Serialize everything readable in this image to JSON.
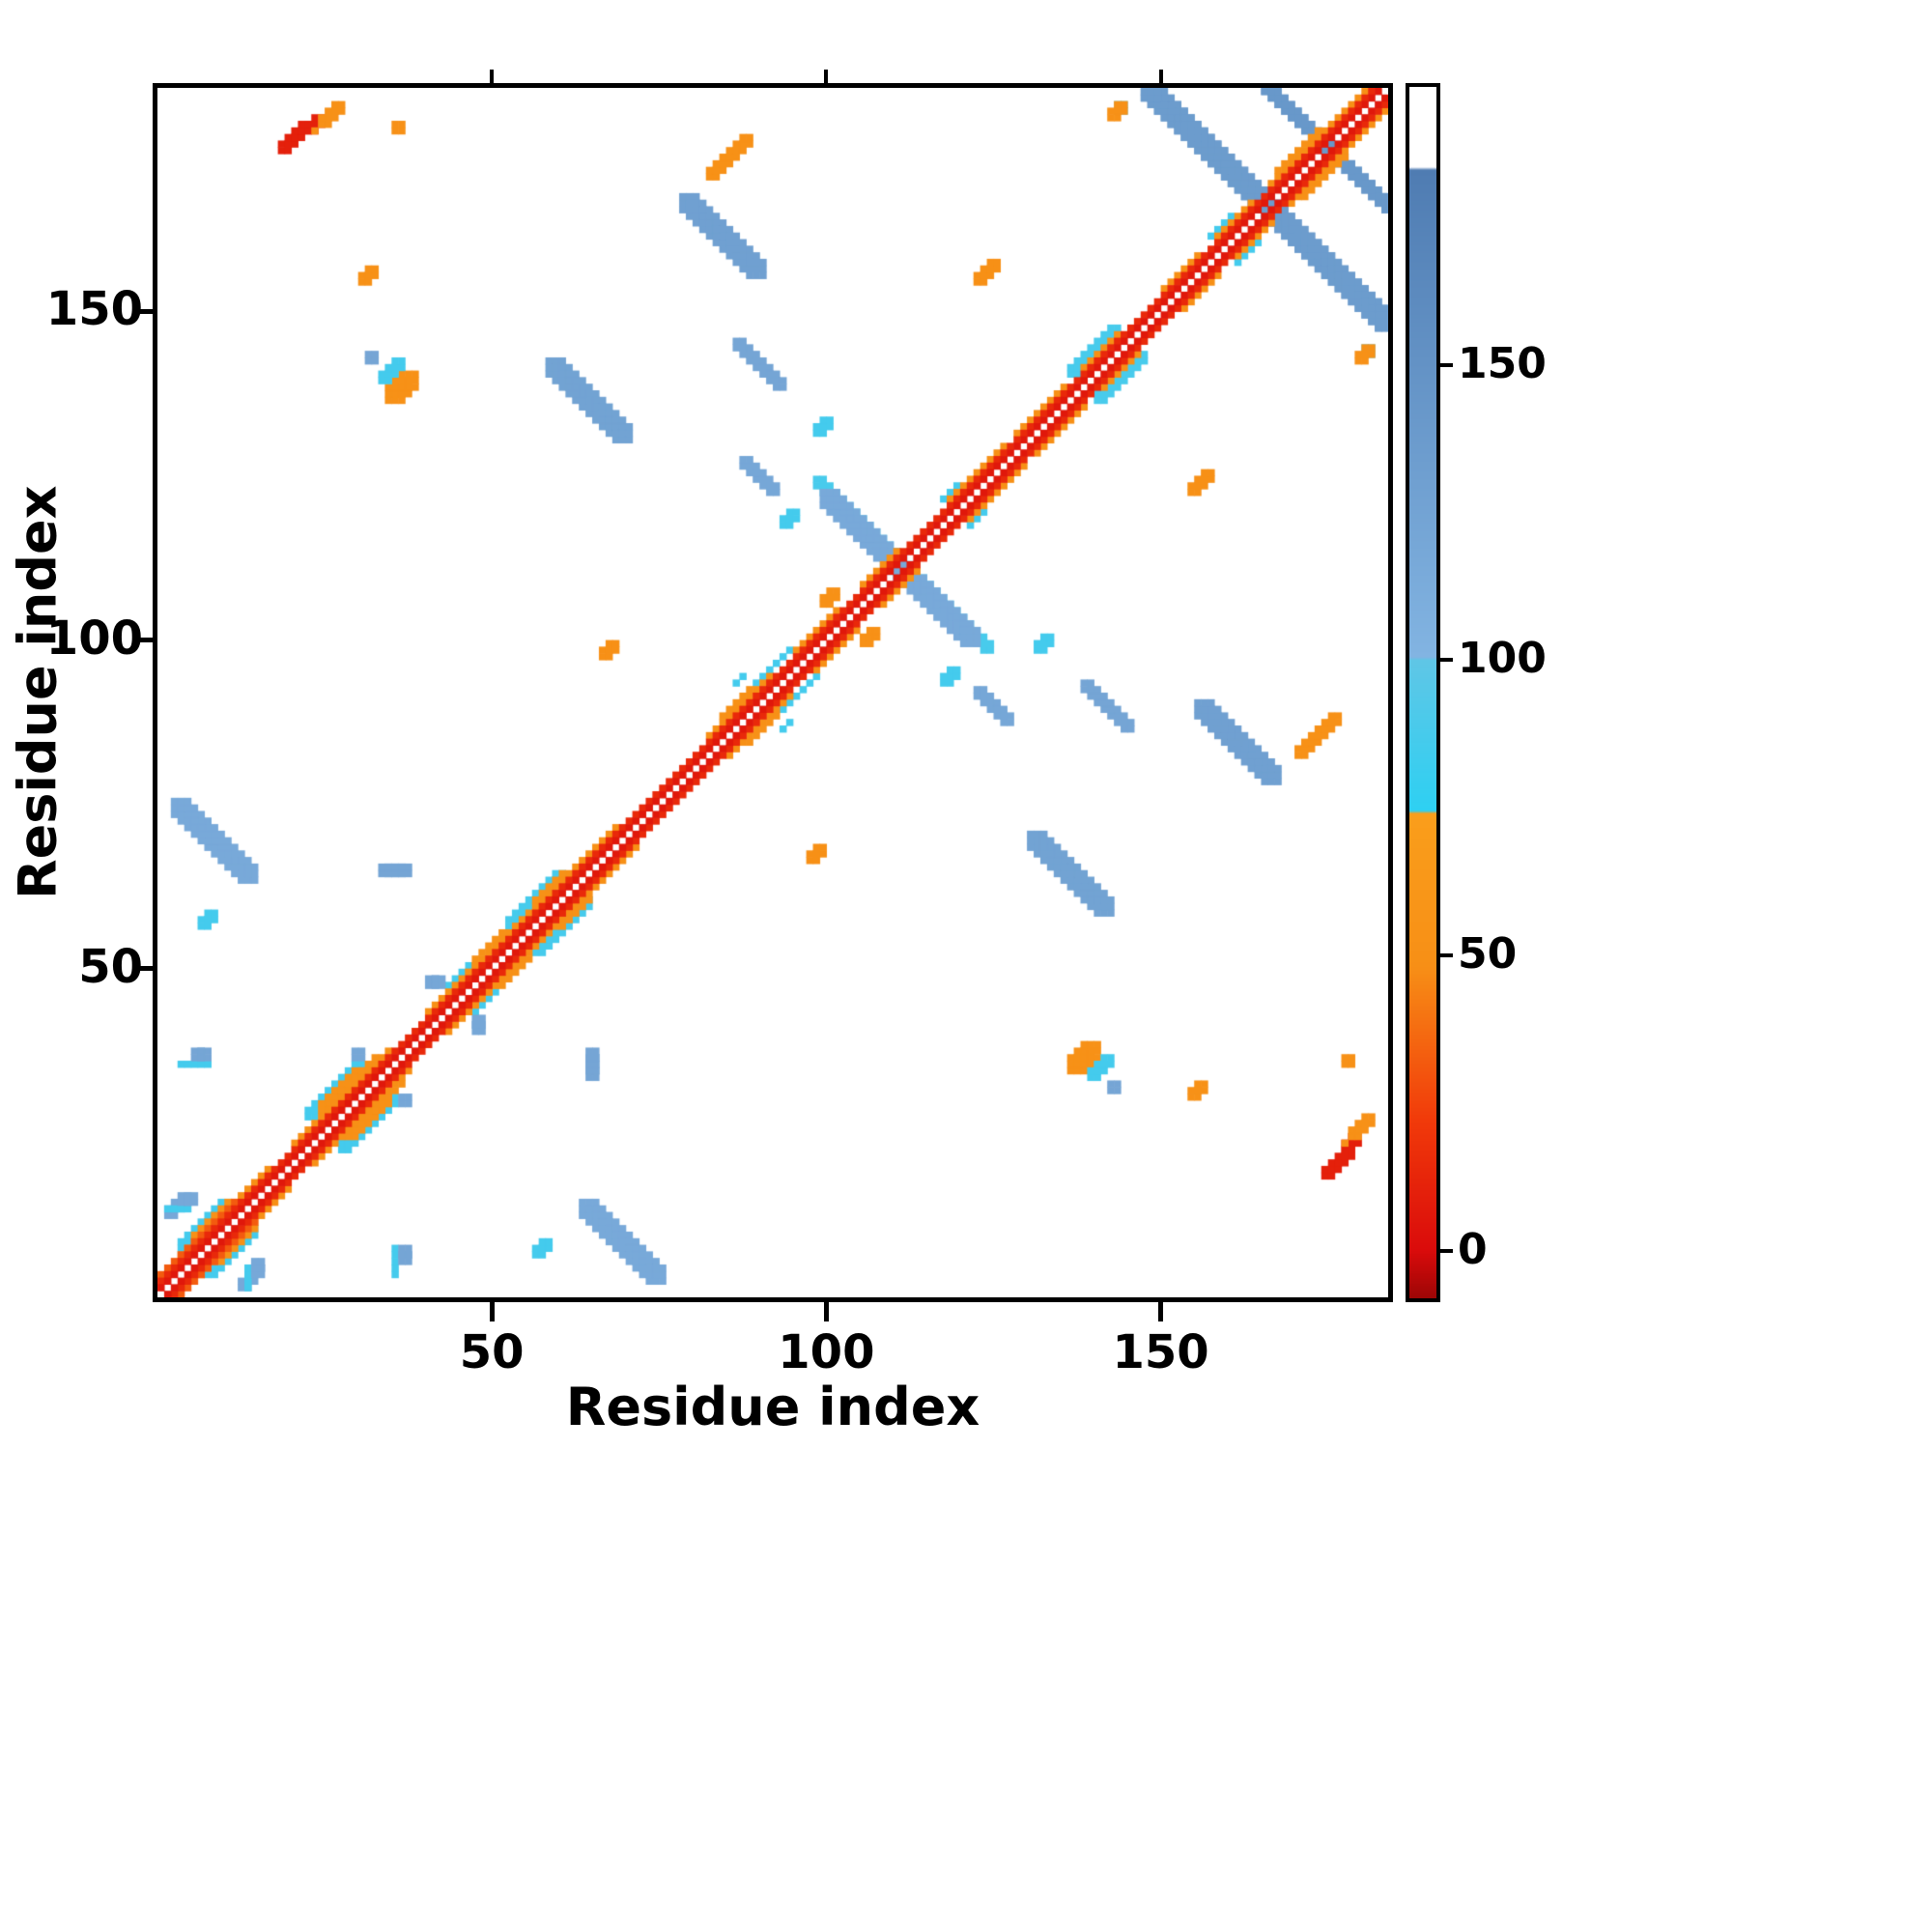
{
  "figure": {
    "kind": "protein residue contact map",
    "background": "#ffffff",
    "frame_color": "#000000"
  },
  "chart_data": {
    "type": "heatmap",
    "title": "",
    "xlabel": "Residue index",
    "ylabel": "Residue index",
    "x_range": [
      0,
      184
    ],
    "y_range": [
      0,
      184
    ],
    "x_ticks": [
      50,
      100,
      150
    ],
    "y_ticks": [
      50,
      100,
      150
    ],
    "grid": false,
    "legend_position": "none",
    "colorbar": {
      "ticks": [
        0,
        50,
        100,
        150
      ],
      "range": [
        -8,
        197
      ],
      "position": "right"
    },
    "colormap": [
      [
        -8,
        "#9e0606"
      ],
      [
        0,
        "#da0b0b"
      ],
      [
        22,
        "#f13a0a"
      ],
      [
        48,
        "#f78f16"
      ],
      [
        74,
        "#fa9e1b"
      ],
      [
        74.5,
        "#2ed0f2"
      ],
      [
        100,
        "#5fc6e6"
      ],
      [
        100.5,
        "#82b4e2"
      ],
      [
        183,
        "#4f7cb2"
      ],
      [
        183.5,
        "#ffffff"
      ],
      [
        197,
        "#ffffff"
      ]
    ],
    "segment_format": [
      "i_start",
      "j_start",
      "length",
      "direction(1=parallel,-1=antiparallel,0=horizontal)",
      "value",
      "width_cells"
    ],
    "symmetric": true,
    "segments": [
      [
        148,
        183,
        36,
        -1,
        136,
        3
      ],
      [
        165,
        183,
        19,
        -1,
        142,
        2
      ],
      [
        98,
        123,
        13,
        -1,
        88,
        2
      ],
      [
        110,
        111,
        12,
        -1,
        116,
        3
      ],
      [
        79,
        166,
        11,
        -1,
        130,
        3
      ],
      [
        59,
        141,
        11,
        -1,
        126,
        3
      ],
      [
        86,
        144,
        7,
        -1,
        122,
        2
      ],
      [
        64,
        13,
        11,
        -1,
        116,
        3
      ],
      [
        122,
        91,
        5,
        -1,
        120,
        2
      ],
      [
        3,
        7,
        7,
        1,
        86,
        2
      ],
      [
        1,
        12,
        2,
        1,
        118,
        2
      ],
      [
        3,
        35,
        5,
        0,
        86,
        1
      ],
      [
        5,
        36,
        2,
        0,
        122,
        2
      ],
      [
        1,
        13,
        4,
        0,
        86,
        1
      ],
      [
        3,
        14,
        2,
        0,
        118,
        2
      ],
      [
        22,
        27,
        8,
        1,
        86,
        2
      ],
      [
        24,
        28,
        6,
        1,
        52,
        2
      ],
      [
        29,
        36,
        1,
        1,
        120,
        2
      ],
      [
        52,
        56,
        8,
        1,
        87,
        2
      ],
      [
        89,
        93,
        6,
        1,
        86,
        1
      ],
      [
        136,
        140,
        7,
        1,
        88,
        2
      ],
      [
        43,
        47,
        4,
        1,
        86,
        1
      ],
      [
        117,
        121,
        3,
        1,
        86,
        1
      ],
      [
        86,
        93,
        2,
        1,
        86,
        1
      ],
      [
        157,
        161,
        4,
        1,
        86,
        1
      ],
      [
        40,
        47,
        2,
        0,
        120,
        2
      ],
      [
        33,
        64,
        4,
        0,
        122,
        2
      ],
      [
        56,
        6,
        2,
        1,
        86,
        2
      ],
      [
        82,
        170,
        6,
        1,
        52,
        2
      ],
      [
        122,
        154,
        3,
        1,
        50,
        2
      ],
      [
        35,
        137,
        3,
        1,
        52,
        3
      ],
      [
        33,
        139,
        3,
        1,
        86,
        2
      ],
      [
        31,
        142,
        1,
        1,
        122,
        2
      ],
      [
        66,
        97,
        2,
        1,
        50,
        2
      ],
      [
        22,
        177,
        2,
        1,
        10,
        2
      ],
      [
        24,
        178,
        3,
        1,
        52,
        2
      ],
      [
        35,
        177,
        1,
        1,
        52,
        2
      ],
      [
        143,
        180,
        1,
        1,
        86,
        2
      ],
      [
        179,
        142,
        2,
        1,
        52,
        2
      ],
      [
        174,
        18,
        4,
        1,
        10,
        2
      ],
      [
        177,
        23,
        1,
        1,
        52,
        1
      ],
      [
        154,
        30,
        2,
        1,
        52,
        2
      ],
      [
        117,
        93,
        2,
        1,
        86,
        2
      ],
      [
        131,
        98,
        2,
        1,
        86,
        2
      ],
      [
        105,
        99,
        2,
        1,
        52,
        2
      ],
      [
        3,
        6,
        14,
        1,
        50,
        1
      ],
      [
        20,
        23,
        6,
        1,
        50,
        1
      ],
      [
        25,
        28,
        10,
        1,
        50,
        1
      ],
      [
        40,
        43,
        8,
        1,
        50,
        1
      ],
      [
        46,
        49,
        9,
        1,
        50,
        1
      ],
      [
        55,
        58,
        8,
        1,
        50,
        1
      ],
      [
        63,
        66,
        6,
        1,
        50,
        1
      ],
      [
        82,
        85,
        10,
        1,
        50,
        1
      ],
      [
        95,
        98,
        7,
        1,
        50,
        1
      ],
      [
        105,
        108,
        6,
        1,
        50,
        1
      ],
      [
        118,
        121,
        9,
        1,
        50,
        1
      ],
      [
        128,
        131,
        8,
        1,
        50,
        1
      ],
      [
        138,
        141,
        6,
        1,
        50,
        1
      ],
      [
        150,
        153,
        6,
        1,
        50,
        1
      ],
      [
        158,
        161,
        6,
        1,
        50,
        1
      ],
      [
        166,
        169,
        10,
        1,
        50,
        1
      ],
      [
        176,
        179,
        5,
        1,
        50,
        1
      ],
      [
        26,
        30,
        7,
        1,
        52,
        1
      ],
      [
        47,
        51,
        5,
        1,
        52,
        1
      ],
      [
        56,
        60,
        5,
        1,
        52,
        1
      ],
      [
        84,
        88,
        5,
        1,
        52,
        1
      ],
      [
        167,
        171,
        7,
        1,
        52,
        1
      ],
      [
        5,
        9,
        6,
        1,
        52,
        1
      ],
      [
        0,
        3,
        12,
        1,
        32,
        1
      ],
      [
        0,
        2,
        182,
        1,
        14,
        1
      ],
      [
        0,
        1,
        183,
        1,
        6,
        1
      ]
    ]
  }
}
